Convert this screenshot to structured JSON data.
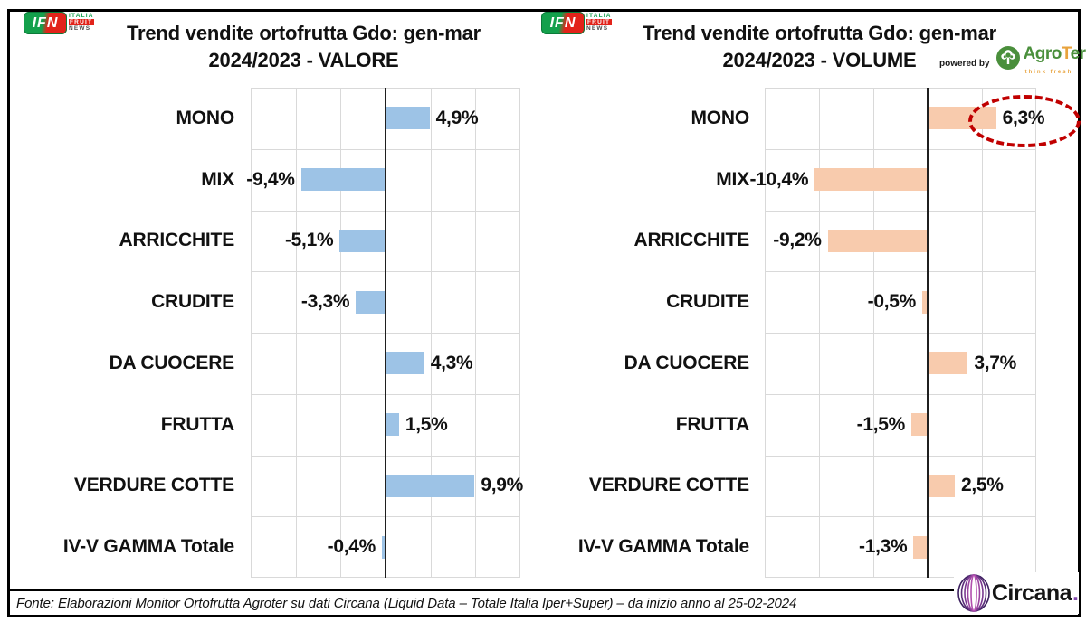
{
  "header": {
    "ifn_logo": {
      "abbr": "IFN",
      "line1": "ITALIA",
      "line2": "FRUIT",
      "line3": "NEWS"
    },
    "powered_by": "powered by",
    "agroter": {
      "name_prefix": "Agro",
      "name_t": "T",
      "name_suffix": "er",
      "tagline": "think fresh"
    }
  },
  "chart_data": [
    {
      "type": "bar",
      "orientation": "horizontal",
      "title_line1": "Trend vendite ortofrutta Gdo: gen-mar",
      "title_line2": "2024/2023 - VALORE",
      "categories": [
        "MONO",
        "MIX",
        "ARRICCHITE",
        "CRUDITE",
        "DA CUOCERE",
        "FRUTTA",
        "VERDURE COTTE",
        "IV-V GAMMA Totale"
      ],
      "values": [
        4.9,
        -9.4,
        -5.1,
        -3.3,
        4.3,
        1.5,
        9.9,
        -0.4
      ],
      "value_labels": [
        "4,9%",
        "-9,4%",
        "-5,1%",
        "-3,3%",
        "4,3%",
        "1,5%",
        "9,9%",
        "-0,4%"
      ],
      "xlim": [
        -15,
        15
      ],
      "grid_step": 5,
      "grid": true,
      "legend": null,
      "bar_color": "#9DC3E6",
      "annotation": null
    },
    {
      "type": "bar",
      "orientation": "horizontal",
      "title_line1": "Trend vendite ortofrutta Gdo: gen-mar",
      "title_line2": "2024/2023 - VOLUME",
      "categories": [
        "MONO",
        "MIX",
        "ARRICCHITE",
        "CRUDITE",
        "DA CUOCERE",
        "FRUTTA",
        "VERDURE COTTE",
        "IV-V GAMMA Totale"
      ],
      "values": [
        6.3,
        -10.4,
        -9.2,
        -0.5,
        3.7,
        -1.5,
        2.5,
        -1.3
      ],
      "value_labels": [
        "6,3%",
        "-10,4%",
        "-9,2%",
        "-0,5%",
        "3,7%",
        "-1,5%",
        "2,5%",
        "-1,3%"
      ],
      "xlim": [
        -15,
        10
      ],
      "grid_step": 5,
      "grid": true,
      "legend": null,
      "bar_color": "#F8CBAD",
      "annotation": {
        "category": "MONO",
        "shape": "dashed-ellipse",
        "color": "#C00000"
      }
    }
  ],
  "footer": {
    "source": "Fonte: Elaborazioni Monitor Ortofrutta Agroter su dati Circana (Liquid Data – Totale Italia Iper+Super) –  da inizio anno al 25-02-2024",
    "circana": {
      "name": "Circana",
      "dot": "."
    }
  },
  "colors": {
    "bar_valore": "#9DC3E6",
    "bar_volume": "#F8CBAD",
    "axis": "#1F1F1F",
    "grid": "#D9D9D9",
    "annotation": "#C00000",
    "ifn_green": "#14A04C",
    "ifn_red": "#E2231A",
    "agroter_green": "#4A8F3C",
    "agroter_orange": "#E8A33D",
    "circana_purple": "#8347AD"
  }
}
